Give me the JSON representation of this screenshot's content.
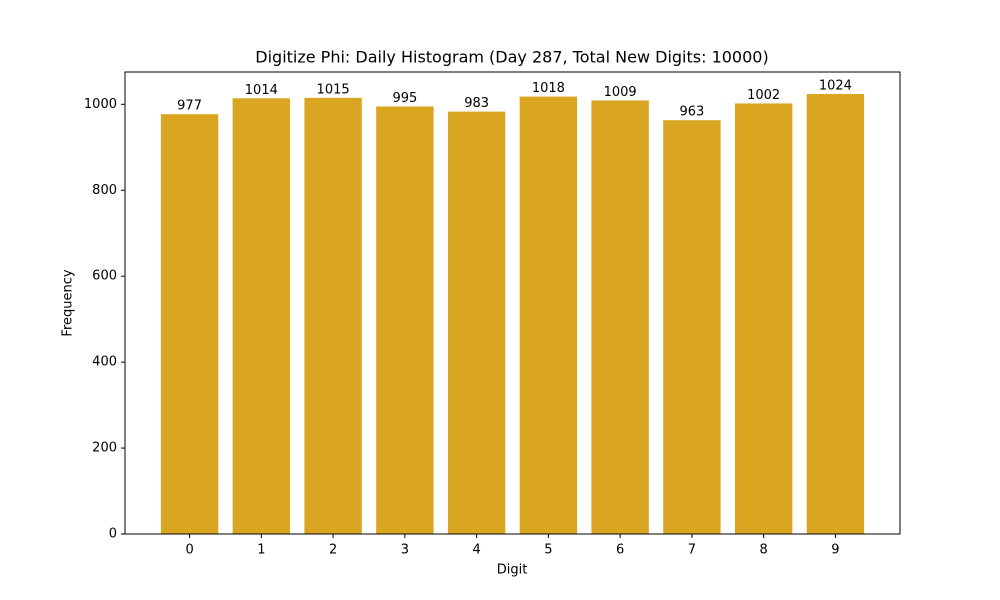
{
  "chart_data": {
    "type": "bar",
    "title": "Digitize Phi: Daily Histogram (Day 287, Total New Digits: 10000)",
    "x_label": "Digit",
    "y_label": "Frequency",
    "categories": [
      "0",
      "1",
      "2",
      "3",
      "4",
      "5",
      "6",
      "7",
      "8",
      "9"
    ],
    "values": [
      977,
      1014,
      1015,
      995,
      983,
      1018,
      1009,
      963,
      1002,
      1024
    ],
    "color": "#daa520",
    "ylim": [
      0,
      1075.2
    ],
    "yticks": [
      0,
      200,
      400,
      600,
      800,
      1000
    ]
  }
}
